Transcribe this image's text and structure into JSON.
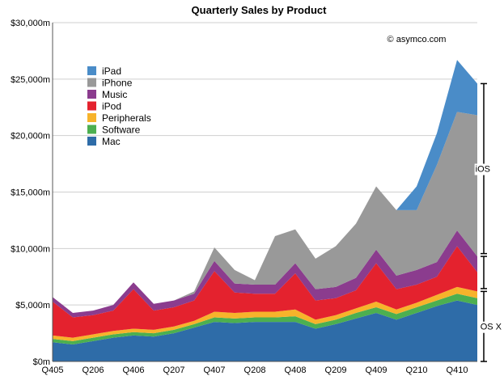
{
  "chart_data": {
    "type": "area",
    "title": "Quarterly Sales by Product",
    "credit": "© asymco.com",
    "stacked": true,
    "grid": true,
    "xlabel": "",
    "ylabel": "",
    "ylim": [
      0,
      30000
    ],
    "y_ticks": [
      "$0m",
      "$5,000m",
      "$10,000m",
      "$15,000m",
      "$20,000m",
      "$25,000m",
      "$30,000m"
    ],
    "x_tick_labels": [
      "Q405",
      "Q206",
      "Q406",
      "Q207",
      "Q407",
      "Q208",
      "Q408",
      "Q209",
      "Q409",
      "Q210",
      "Q410"
    ],
    "legend_placement": "top-left",
    "x": [
      "Q405",
      "Q106",
      "Q206",
      "Q306",
      "Q406",
      "Q107",
      "Q207",
      "Q307",
      "Q407",
      "Q108",
      "Q208",
      "Q308",
      "Q408",
      "Q109",
      "Q209",
      "Q309",
      "Q409",
      "Q110",
      "Q210",
      "Q310",
      "Q410",
      "Q111"
    ],
    "series": [
      {
        "name": "Mac",
        "color": "#2e6ca8",
        "values": [
          1700,
          1500,
          1800,
          2100,
          2300,
          2200,
          2500,
          3000,
          3500,
          3400,
          3500,
          3500,
          3500,
          2900,
          3300,
          3800,
          4300,
          3700,
          4300,
          4900,
          5400,
          5000
        ]
      },
      {
        "name": "Software",
        "color": "#4caf50",
        "values": [
          300,
          300,
          300,
          300,
          300,
          300,
          300,
          300,
          400,
          400,
          400,
          400,
          500,
          400,
          400,
          500,
          500,
          500,
          500,
          500,
          600,
          600
        ]
      },
      {
        "name": "Peripherals",
        "color": "#f7b32b",
        "values": [
          300,
          300,
          300,
          300,
          300,
          300,
          300,
          300,
          500,
          500,
          500,
          500,
          600,
          400,
          400,
          400,
          500,
          400,
          400,
          500,
          600,
          600
        ]
      },
      {
        "name": "iPod",
        "color": "#e4222e",
        "values": [
          3000,
          1800,
          1700,
          1800,
          3500,
          1700,
          1700,
          1800,
          3600,
          1800,
          1600,
          1600,
          3200,
          1700,
          1500,
          1600,
          3400,
          1800,
          1600,
          1600,
          3600,
          1700
        ]
      },
      {
        "name": "Music",
        "color": "#8b3c8e",
        "values": [
          400,
          400,
          400,
          500,
          600,
          600,
          600,
          600,
          900,
          800,
          800,
          800,
          900,
          1000,
          1000,
          1100,
          1200,
          1200,
          1300,
          1300,
          1400,
          1400
        ]
      },
      {
        "name": "iPhone",
        "color": "#999999",
        "values": [
          0,
          0,
          0,
          0,
          0,
          0,
          0,
          200,
          1200,
          1200,
          400,
          4300,
          3000,
          2700,
          3600,
          4800,
          5600,
          5800,
          5300,
          8600,
          10500,
          12500
        ]
      },
      {
        "name": "iPad",
        "color": "#4a8cc8",
        "values": [
          0,
          0,
          0,
          0,
          0,
          0,
          0,
          0,
          0,
          0,
          0,
          0,
          0,
          0,
          0,
          0,
          0,
          0,
          2100,
          2800,
          4600,
          2800
        ]
      }
    ],
    "annotations": [
      {
        "label": "iOS"
      },
      {
        "label": "OS X"
      }
    ]
  }
}
